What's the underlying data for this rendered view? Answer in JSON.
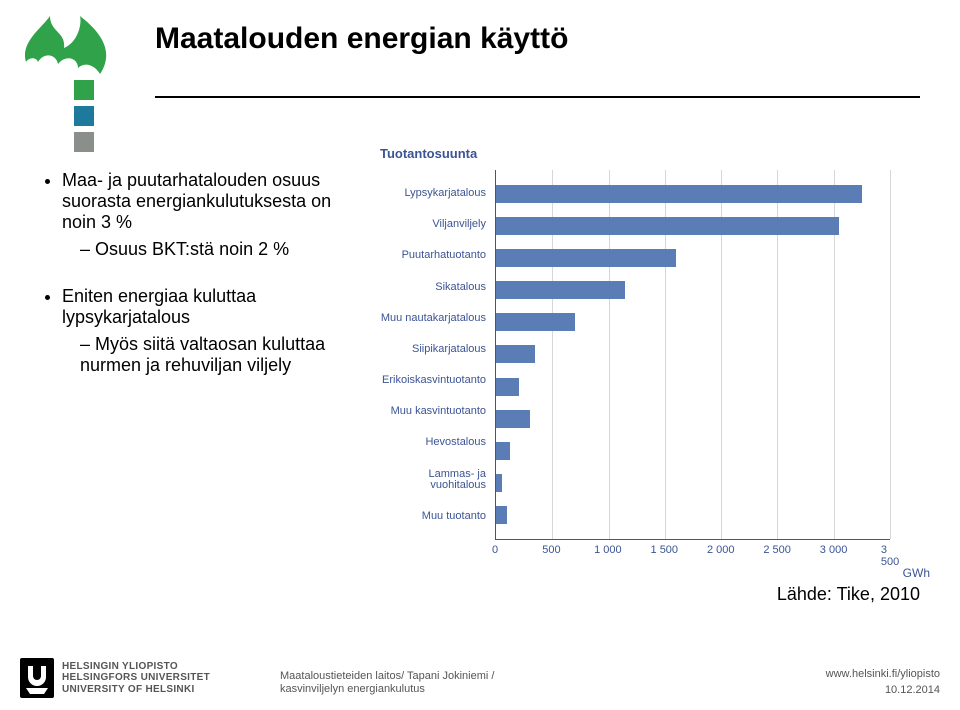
{
  "logo": {
    "flame_color": "#2fa24a",
    "square_colors": [
      "#2fa24a",
      "#1d7a9c",
      "#8a8f8c"
    ]
  },
  "title": "Maatalouden energian käyttö",
  "bullets": [
    {
      "text": "Maa- ja puutarhatalouden osuus suorasta energiankulutuksesta on noin 3 %",
      "sub": [
        "Osuus BKT:stä noin 2 %"
      ]
    },
    {
      "text": "Eniten energiaa kuluttaa lypsykarjatalous",
      "sub": [
        "Myös siitä valtaosan kuluttaa nurmen ja rehuviljan viljely"
      ]
    }
  ],
  "chart": {
    "type": "bar-horizontal",
    "header": "Tuotantosuunta",
    "x_unit": "GWh",
    "xlim": [
      0,
      3500
    ],
    "xtick_step": 500,
    "bar_color": "#5b7db6",
    "grid_color": "#d6d6d6",
    "axis_color": "#555555",
    "label_color": "#3b5494",
    "label_fontsize": 11,
    "categories": [
      "Lypsykarjatalous",
      "Viljanviljely",
      "Puutarhatuotanto",
      "Sikatalous",
      "Muu nautakarjatalous",
      "Siipikarjatalous",
      "Erikoiskasvintuotanto",
      "Muu kasvintuotanto",
      "Hevostalous",
      "Lammas- ja vuohitalous",
      "Muu tuotanto"
    ],
    "values": [
      3250,
      3050,
      1600,
      1150,
      700,
      350,
      200,
      300,
      120,
      50,
      100
    ]
  },
  "source_label": "Lähde: Tike, 2010",
  "footer": {
    "uni_lines": [
      "HELSINGIN YLIOPISTO",
      "HELSINGFORS UNIVERSITET",
      "UNIVERSITY OF HELSINKI"
    ],
    "uni_logo_bg": "#000000",
    "dept_lines": [
      "Maataloustieteiden laitos/ Tapani Jokiniemi /",
      "kasvinviljelyn energiankulutus"
    ],
    "url": "www.helsinki.fi/yliopisto",
    "date": "10.12.2014"
  }
}
